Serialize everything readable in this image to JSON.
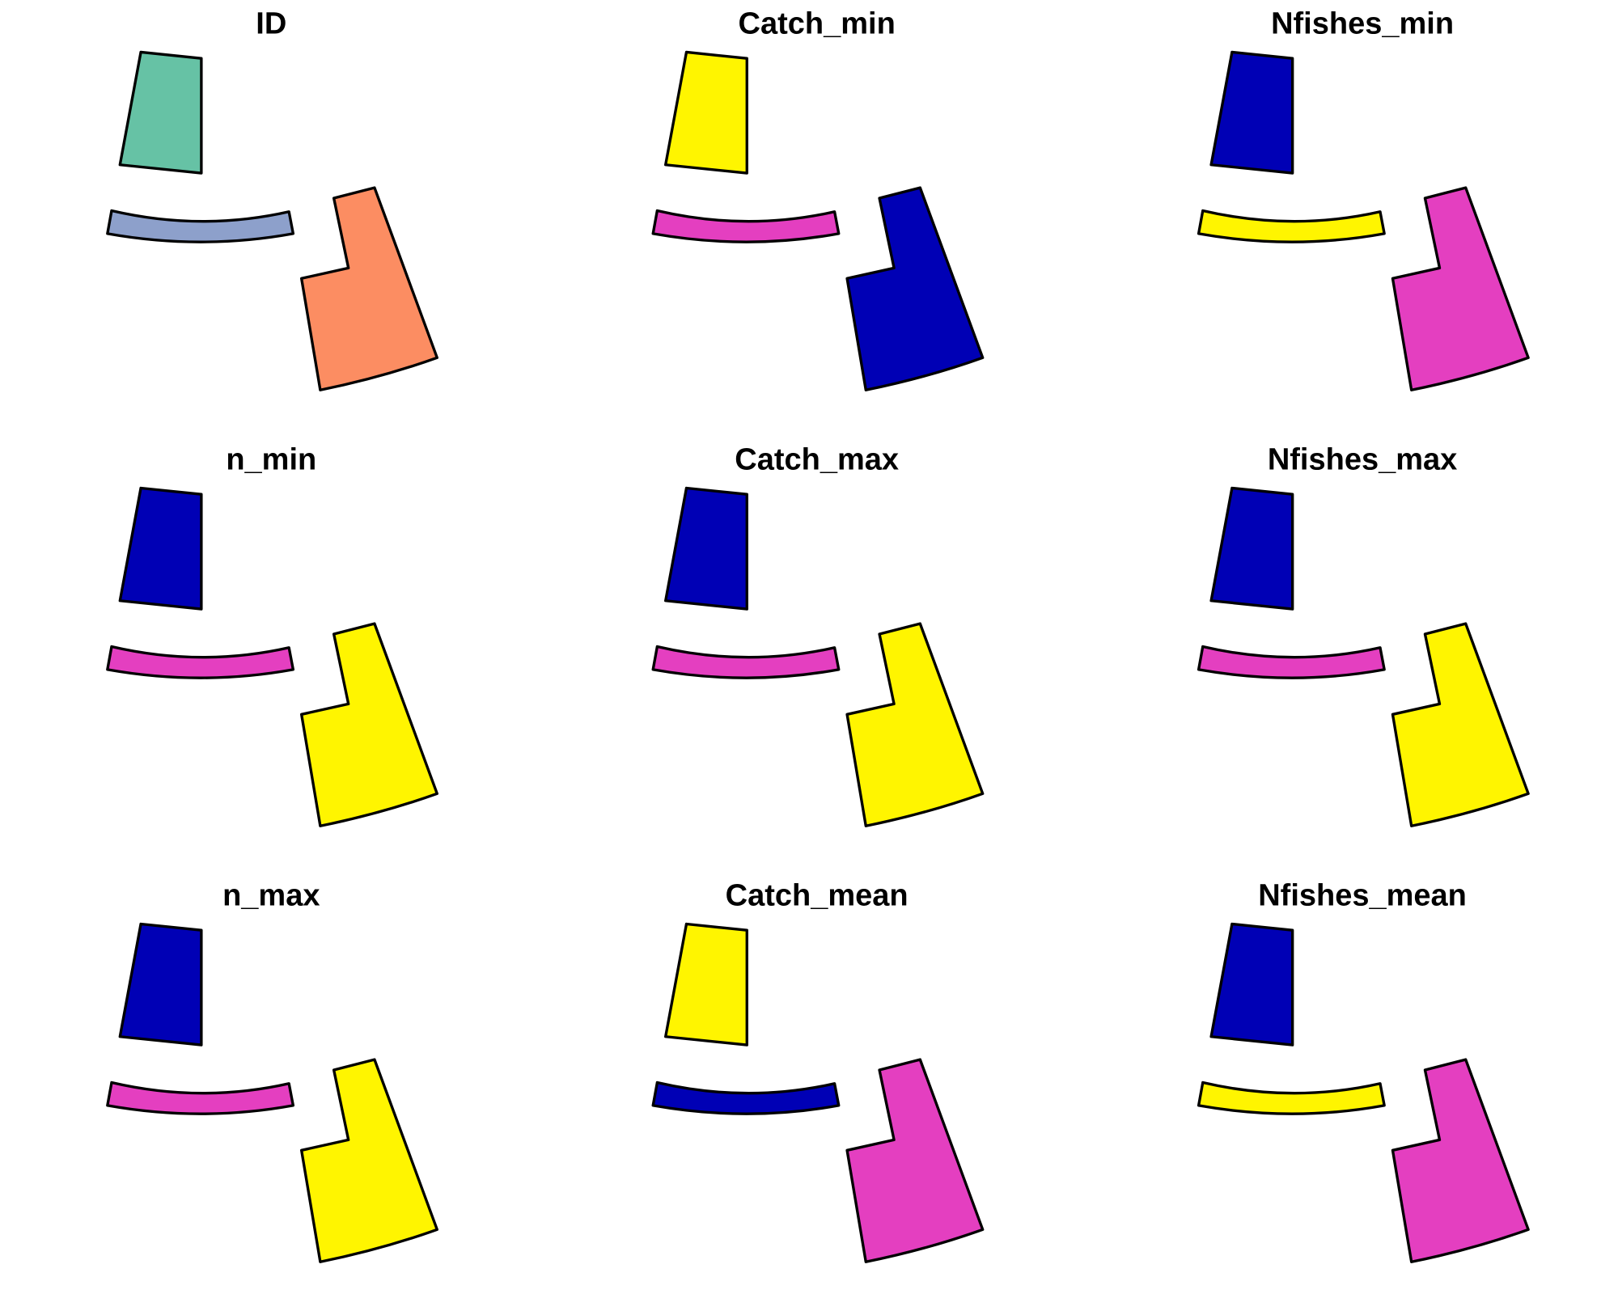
{
  "figure": {
    "panels": [
      {
        "title": "ID",
        "fills": {
          "north": "#66C2A5",
          "strip": "#8DA0CB",
          "east": "#FC8D62"
        }
      },
      {
        "title": "Catch_min",
        "fills": {
          "north": "#FFF500",
          "strip": "#E43FC0",
          "east": "#0000B5"
        }
      },
      {
        "title": "Nfishes_min",
        "fills": {
          "north": "#0000B5",
          "strip": "#FFF500",
          "east": "#E43FC0"
        }
      },
      {
        "title": "n_min",
        "fills": {
          "north": "#0000B5",
          "strip": "#E43FC0",
          "east": "#FFF500"
        }
      },
      {
        "title": "Catch_max",
        "fills": {
          "north": "#0000B5",
          "strip": "#E43FC0",
          "east": "#FFF500"
        }
      },
      {
        "title": "Nfishes_max",
        "fills": {
          "north": "#0000B5",
          "strip": "#E43FC0",
          "east": "#FFF500"
        }
      },
      {
        "title": "n_max",
        "fills": {
          "north": "#0000B5",
          "strip": "#E43FC0",
          "east": "#FFF500"
        }
      },
      {
        "title": "Catch_mean",
        "fills": {
          "north": "#FFF500",
          "strip": "#0000B5",
          "east": "#E43FC0"
        }
      },
      {
        "title": "Nfishes_mean",
        "fills": {
          "north": "#0000B5",
          "strip": "#FFF500",
          "east": "#E43FC0"
        }
      }
    ]
  }
}
